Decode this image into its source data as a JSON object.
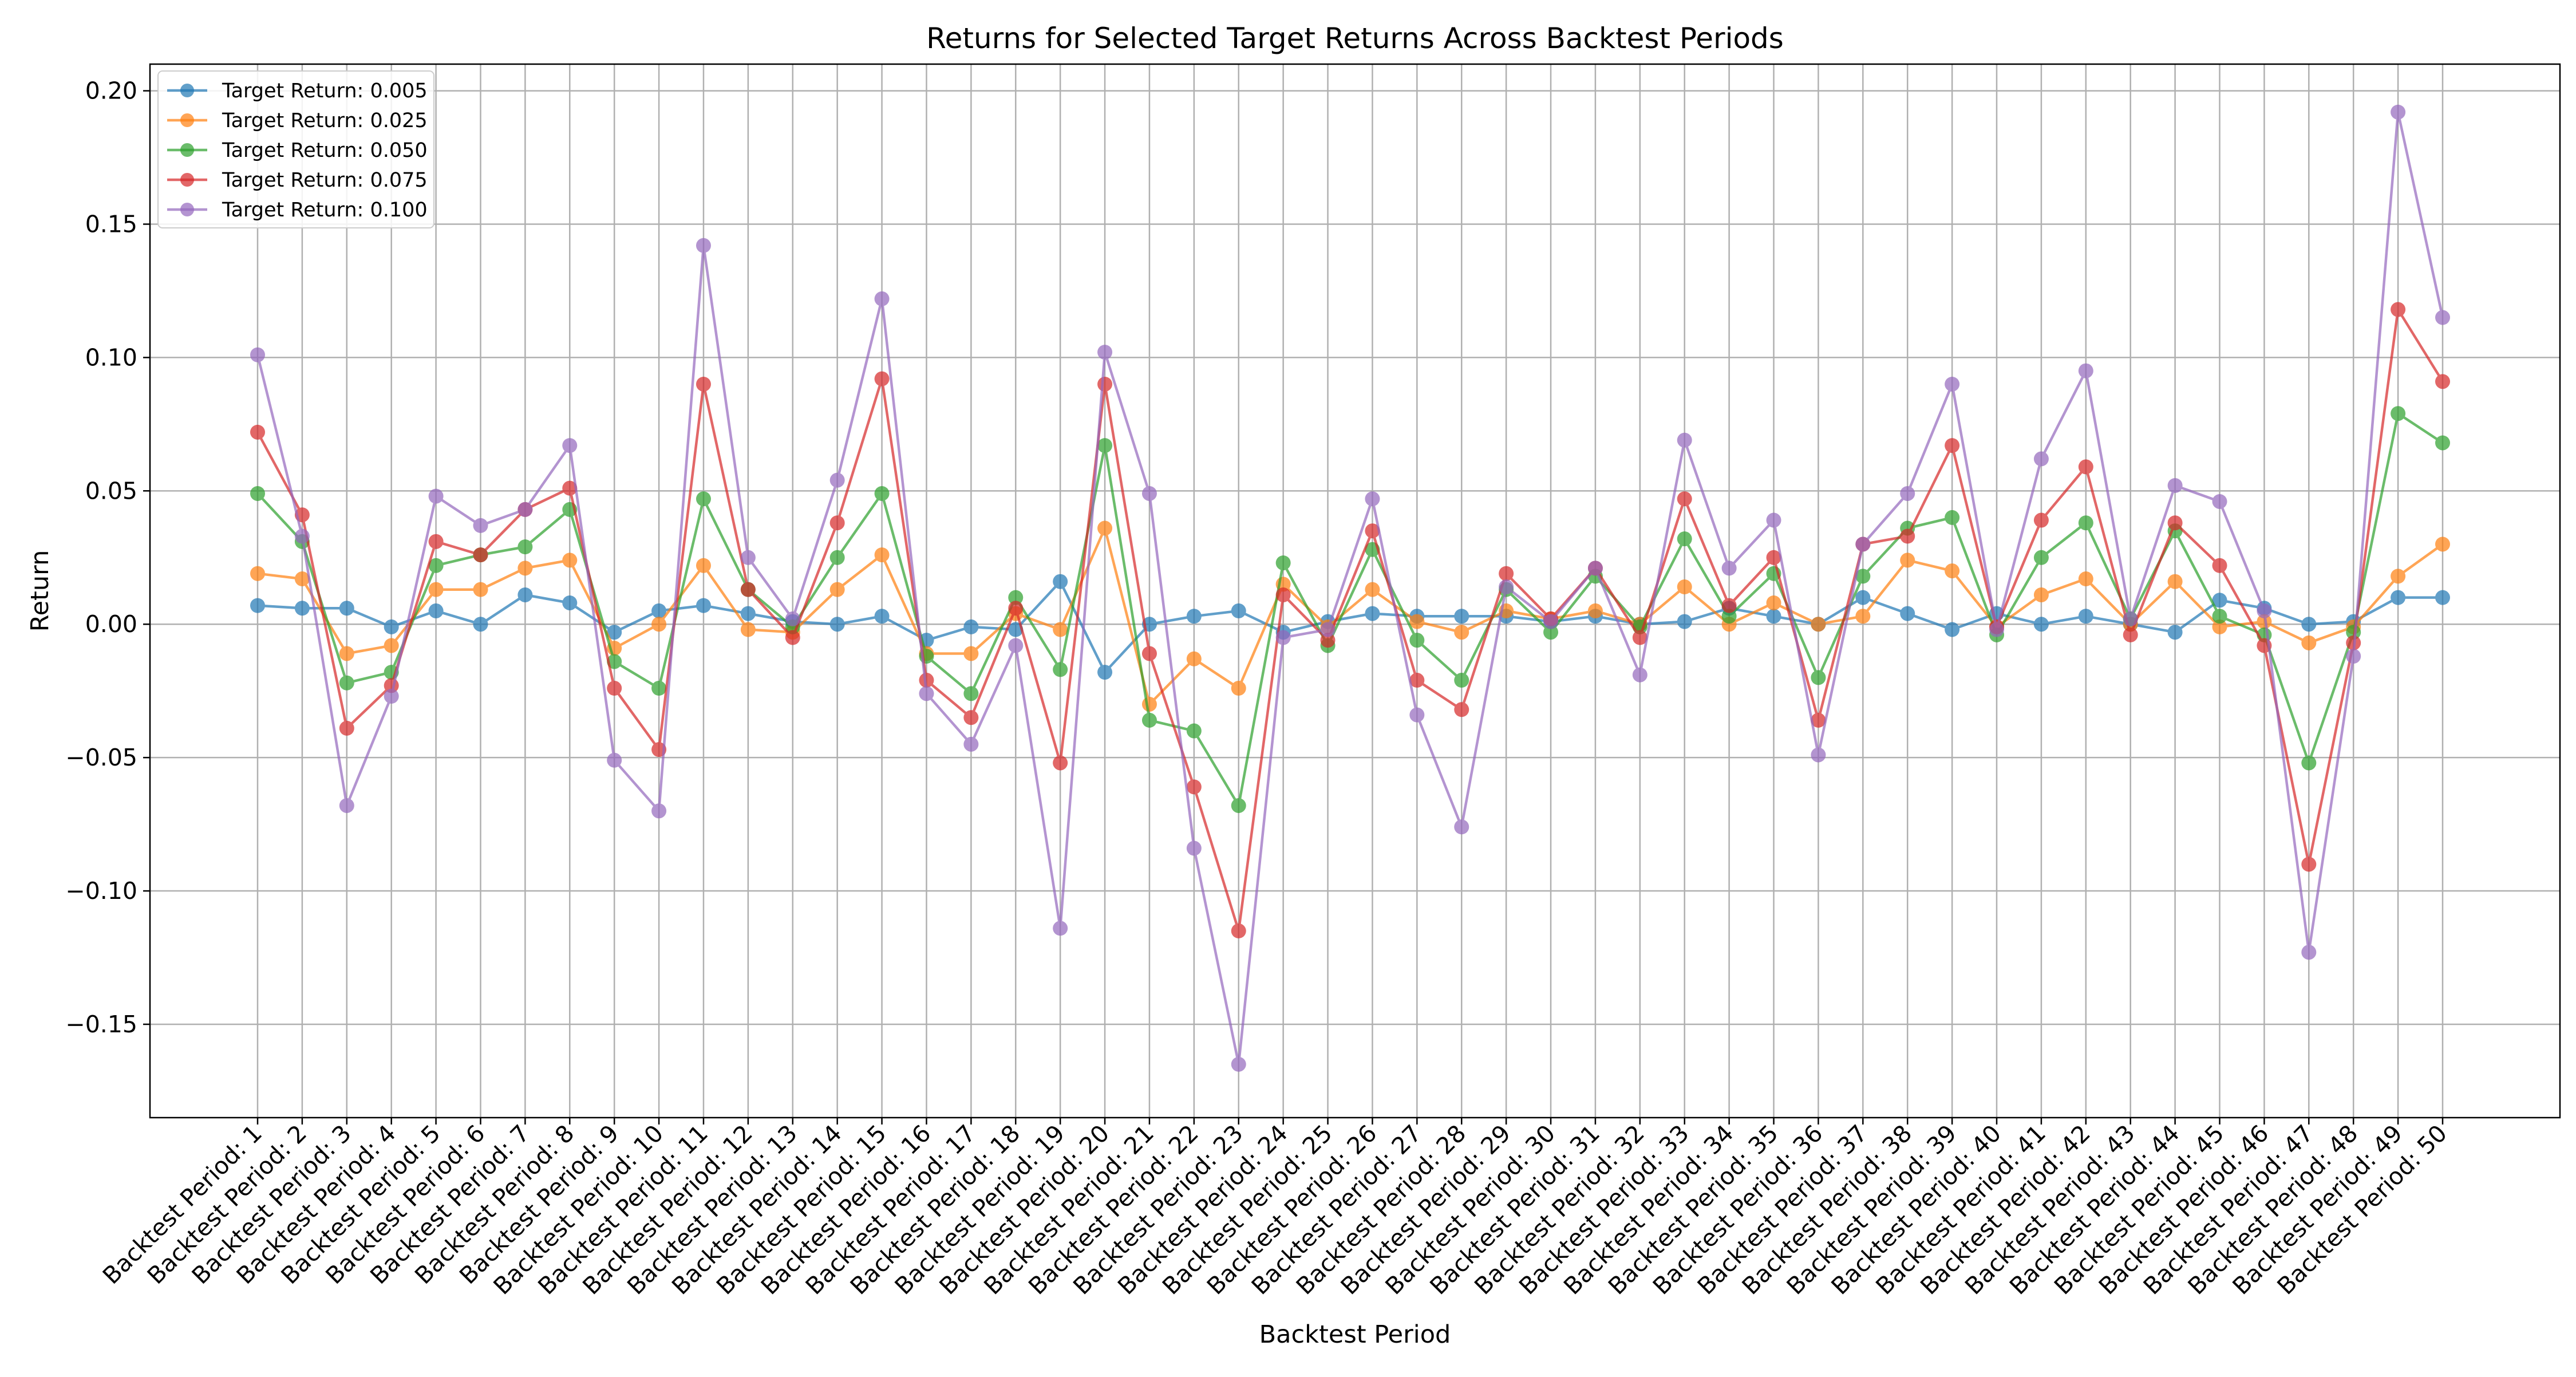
{
  "chart_data": {
    "type": "line",
    "title": "Returns for Selected Target Returns Across Backtest Periods",
    "xlabel": "Backtest Period",
    "ylabel": "Return",
    "ylim": [
      -0.185,
      0.21
    ],
    "yticks": [
      -0.15,
      -0.1,
      -0.05,
      0.0,
      0.05,
      0.1,
      0.15,
      0.2
    ],
    "ytick_labels": [
      "−0.15",
      "−0.10",
      "−0.05",
      "0.00",
      "0.05",
      "0.10",
      "0.15",
      "0.20"
    ],
    "grid": true,
    "legend_position": "top-left",
    "categories": [
      "Backtest Period: 1",
      "Backtest Period: 2",
      "Backtest Period: 3",
      "Backtest Period: 4",
      "Backtest Period: 5",
      "Backtest Period: 6",
      "Backtest Period: 7",
      "Backtest Period: 8",
      "Backtest Period: 9",
      "Backtest Period: 10",
      "Backtest Period: 11",
      "Backtest Period: 12",
      "Backtest Period: 13",
      "Backtest Period: 14",
      "Backtest Period: 15",
      "Backtest Period: 16",
      "Backtest Period: 17",
      "Backtest Period: 18",
      "Backtest Period: 19",
      "Backtest Period: 20",
      "Backtest Period: 21",
      "Backtest Period: 22",
      "Backtest Period: 23",
      "Backtest Period: 24",
      "Backtest Period: 25",
      "Backtest Period: 26",
      "Backtest Period: 27",
      "Backtest Period: 28",
      "Backtest Period: 29",
      "Backtest Period: 30",
      "Backtest Period: 31",
      "Backtest Period: 32",
      "Backtest Period: 33",
      "Backtest Period: 34",
      "Backtest Period: 35",
      "Backtest Period: 36",
      "Backtest Period: 37",
      "Backtest Period: 38",
      "Backtest Period: 39",
      "Backtest Period: 40",
      "Backtest Period: 41",
      "Backtest Period: 42",
      "Backtest Period: 43",
      "Backtest Period: 44",
      "Backtest Period: 45",
      "Backtest Period: 46",
      "Backtest Period: 47",
      "Backtest Period: 48",
      "Backtest Period: 49",
      "Backtest Period: 50"
    ],
    "series": [
      {
        "name": "Target Return: 0.005",
        "color": "#1f77b4",
        "values": [
          0.007,
          0.006,
          0.006,
          -0.001,
          0.005,
          0.0,
          0.011,
          0.008,
          -0.003,
          0.005,
          0.007,
          0.004,
          0.001,
          0.0,
          0.003,
          -0.006,
          -0.001,
          -0.002,
          0.016,
          -0.018,
          0.0,
          0.003,
          0.005,
          -0.003,
          0.001,
          0.004,
          0.003,
          0.003,
          0.003,
          0.001,
          0.003,
          0.0,
          0.001,
          0.006,
          0.003,
          0.0,
          0.01,
          0.004,
          -0.002,
          0.004,
          0.0,
          0.003,
          0.0,
          -0.003,
          0.009,
          0.006,
          0.0,
          0.001,
          0.01,
          0.01
        ]
      },
      {
        "name": "Target Return: 0.025",
        "color": "#ff7f0e",
        "values": [
          0.019,
          0.017,
          -0.011,
          -0.008,
          0.013,
          0.013,
          0.021,
          0.024,
          -0.009,
          0.0,
          0.022,
          -0.002,
          -0.003,
          0.013,
          0.026,
          -0.011,
          -0.011,
          0.004,
          -0.002,
          0.036,
          -0.03,
          -0.013,
          -0.024,
          0.015,
          -0.001,
          0.013,
          0.001,
          -0.003,
          0.005,
          0.002,
          0.005,
          0.0,
          0.014,
          0.0,
          0.008,
          0.0,
          0.003,
          0.024,
          0.02,
          -0.001,
          0.011,
          0.017,
          0.0,
          0.016,
          -0.001,
          0.001,
          -0.007,
          -0.001,
          0.018,
          0.03
        ]
      },
      {
        "name": "Target Return: 0.050",
        "color": "#2ca02c",
        "values": [
          0.049,
          0.031,
          -0.022,
          -0.018,
          0.022,
          0.026,
          0.029,
          0.043,
          -0.014,
          -0.024,
          0.047,
          0.013,
          -0.001,
          0.025,
          0.049,
          -0.012,
          -0.026,
          0.01,
          -0.017,
          0.067,
          -0.036,
          -0.04,
          -0.068,
          0.023,
          -0.008,
          0.028,
          -0.006,
          -0.021,
          0.013,
          -0.003,
          0.018,
          -0.001,
          0.032,
          0.003,
          0.019,
          -0.02,
          0.018,
          0.036,
          0.04,
          -0.004,
          0.025,
          0.038,
          0.002,
          0.035,
          0.003,
          -0.004,
          -0.052,
          -0.003,
          0.079,
          0.068
        ]
      },
      {
        "name": "Target Return: 0.075",
        "color": "#d62728",
        "values": [
          0.072,
          0.041,
          -0.039,
          -0.023,
          0.031,
          0.026,
          0.043,
          0.051,
          -0.024,
          -0.047,
          0.09,
          0.013,
          -0.005,
          0.038,
          0.092,
          -0.021,
          -0.035,
          0.006,
          -0.052,
          0.09,
          -0.011,
          -0.061,
          -0.115,
          0.011,
          -0.006,
          0.035,
          -0.021,
          -0.032,
          0.019,
          0.002,
          0.021,
          -0.005,
          0.047,
          0.007,
          0.025,
          -0.036,
          0.03,
          0.033,
          0.067,
          -0.001,
          0.039,
          0.059,
          -0.004,
          0.038,
          0.022,
          -0.008,
          -0.09,
          -0.007,
          0.118,
          0.091
        ]
      },
      {
        "name": "Target Return: 0.100",
        "color": "#9467bd",
        "values": [
          0.101,
          0.033,
          -0.068,
          -0.027,
          0.048,
          0.037,
          0.043,
          0.067,
          -0.051,
          -0.07,
          0.142,
          0.025,
          0.002,
          0.054,
          0.122,
          -0.026,
          -0.045,
          -0.008,
          -0.114,
          0.102,
          0.049,
          -0.084,
          -0.165,
          -0.005,
          -0.002,
          0.047,
          -0.034,
          -0.076,
          0.014,
          0.001,
          0.021,
          -0.019,
          0.069,
          0.021,
          0.039,
          -0.049,
          0.03,
          0.049,
          0.09,
          -0.002,
          0.062,
          0.095,
          0.002,
          0.052,
          0.046,
          0.005,
          -0.123,
          -0.012,
          0.192,
          0.115
        ]
      }
    ]
  }
}
